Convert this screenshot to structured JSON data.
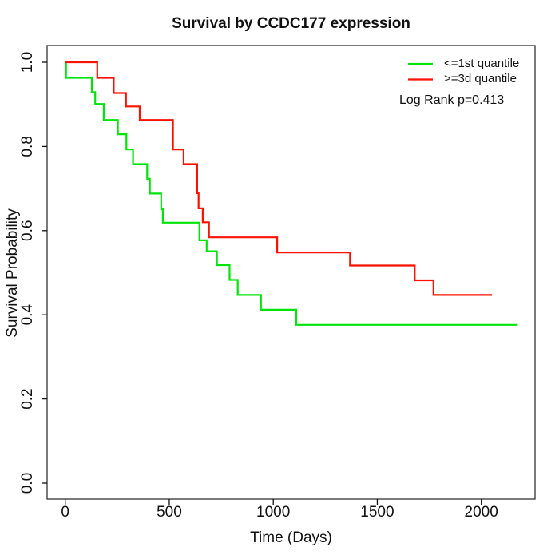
{
  "chart_data": {
    "type": "line",
    "subtype": "kaplan-meier-step",
    "title": "Survival by CCDC177 expression",
    "xlabel": "Time (Days)",
    "ylabel": "Survival Probability",
    "xlim": [
      -90,
      2260
    ],
    "ylim": [
      -0.04,
      1.04
    ],
    "x_ticks": [
      0,
      500,
      1000,
      1500,
      2000
    ],
    "x_tick_labels": [
      "0",
      "500",
      "1000",
      "1500",
      "2000"
    ],
    "y_ticks": [
      0.0,
      0.2,
      0.4,
      0.6,
      0.8,
      1.0
    ],
    "y_tick_labels": [
      "0.0",
      "0.2",
      "0.4",
      "0.6",
      "0.8",
      "1.0"
    ],
    "grid": false,
    "legend_position": "top-right",
    "annotation": "Log Rank p=0.413",
    "series": [
      {
        "name": "<=1st quantile",
        "color": "#00e509",
        "end_time": 2175,
        "steps": [
          [
            0,
            1.0
          ],
          [
            4,
            0.963
          ],
          [
            128,
            0.929
          ],
          [
            144,
            0.901
          ],
          [
            185,
            0.863
          ],
          [
            253,
            0.829
          ],
          [
            294,
            0.793
          ],
          [
            326,
            0.758
          ],
          [
            394,
            0.723
          ],
          [
            407,
            0.688
          ],
          [
            461,
            0.651
          ],
          [
            469,
            0.619
          ],
          [
            645,
            0.577
          ],
          [
            680,
            0.551
          ],
          [
            729,
            0.518
          ],
          [
            790,
            0.483
          ],
          [
            829,
            0.447
          ],
          [
            941,
            0.412
          ],
          [
            1110,
            0.376
          ]
        ]
      },
      {
        "name": ">=3d quantile",
        "color": "#ff1100",
        "end_time": 2051,
        "steps": [
          [
            0,
            1.0
          ],
          [
            154,
            0.963
          ],
          [
            233,
            0.927
          ],
          [
            292,
            0.895
          ],
          [
            358,
            0.863
          ],
          [
            518,
            0.793
          ],
          [
            569,
            0.758
          ],
          [
            634,
            0.689
          ],
          [
            641,
            0.653
          ],
          [
            661,
            0.62
          ],
          [
            691,
            0.584
          ],
          [
            1019,
            0.548
          ],
          [
            1369,
            0.517
          ],
          [
            1680,
            0.482
          ],
          [
            1770,
            0.447
          ]
        ]
      }
    ]
  }
}
